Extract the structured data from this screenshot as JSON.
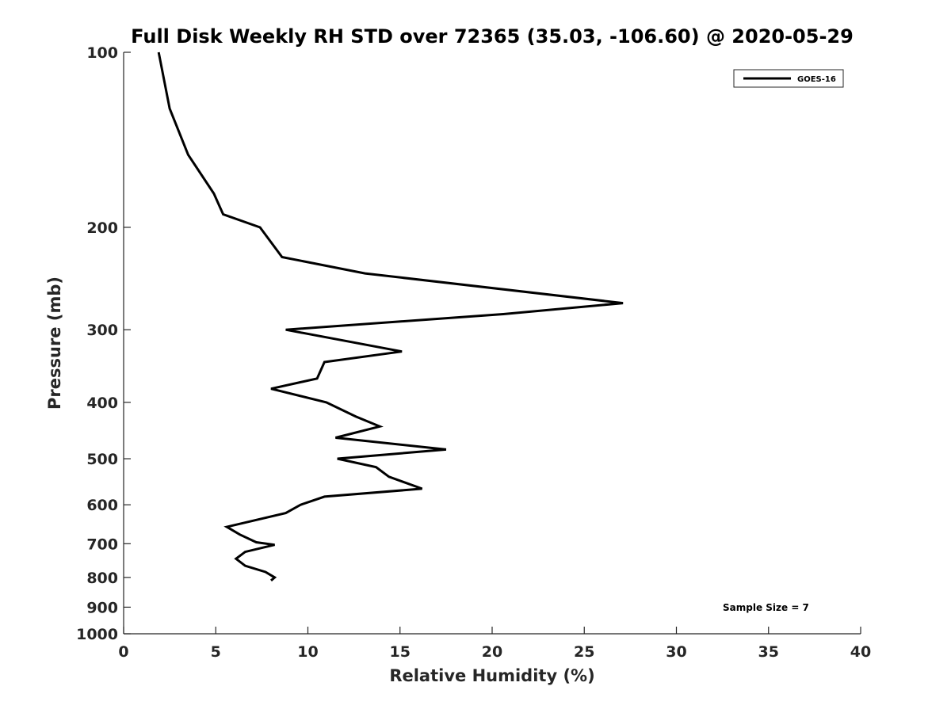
{
  "chart_data": {
    "type": "line",
    "title": "Full Disk Weekly RH STD over 72365 (35.03, -106.60) @ 2020-05-29",
    "xlabel": "Relative Humidity (%)",
    "ylabel": "Pressure (mb)",
    "xlim": [
      0,
      40
    ],
    "ylim": [
      1000,
      100
    ],
    "yscale": "log",
    "x_ticks": [
      "0",
      "5",
      "10",
      "15",
      "20",
      "25",
      "30",
      "35",
      "40"
    ],
    "y_ticks": [
      "100",
      "200",
      "300",
      "400",
      "500",
      "600",
      "700",
      "800",
      "900",
      "1000"
    ],
    "grid": false,
    "legend_position": "top-right",
    "annotation": "Sample Size = 7",
    "series": [
      {
        "name": "GOES-16",
        "color": "#000000",
        "points": [
          {
            "x": 1.9,
            "p": 100
          },
          {
            "x": 2.5,
            "p": 125
          },
          {
            "x": 3.5,
            "p": 150
          },
          {
            "x": 4.9,
            "p": 175
          },
          {
            "x": 5.4,
            "p": 190
          },
          {
            "x": 7.4,
            "p": 200
          },
          {
            "x": 8.6,
            "p": 225
          },
          {
            "x": 13.1,
            "p": 240
          },
          {
            "x": 27.1,
            "p": 270
          },
          {
            "x": 20.6,
            "p": 282
          },
          {
            "x": 8.8,
            "p": 300
          },
          {
            "x": 15.1,
            "p": 327
          },
          {
            "x": 10.9,
            "p": 341
          },
          {
            "x": 10.5,
            "p": 364
          },
          {
            "x": 8.0,
            "p": 379
          },
          {
            "x": 11.0,
            "p": 400
          },
          {
            "x": 12.6,
            "p": 423
          },
          {
            "x": 13.9,
            "p": 440
          },
          {
            "x": 11.5,
            "p": 460
          },
          {
            "x": 17.5,
            "p": 482
          },
          {
            "x": 11.6,
            "p": 500
          },
          {
            "x": 13.7,
            "p": 517
          },
          {
            "x": 14.4,
            "p": 537
          },
          {
            "x": 16.2,
            "p": 563
          },
          {
            "x": 10.9,
            "p": 581
          },
          {
            "x": 9.6,
            "p": 600
          },
          {
            "x": 8.8,
            "p": 620
          },
          {
            "x": 5.6,
            "p": 655
          },
          {
            "x": 6.3,
            "p": 675
          },
          {
            "x": 7.2,
            "p": 696
          },
          {
            "x": 8.2,
            "p": 703
          },
          {
            "x": 6.6,
            "p": 723
          },
          {
            "x": 6.1,
            "p": 743
          },
          {
            "x": 6.6,
            "p": 764
          },
          {
            "x": 7.7,
            "p": 783
          },
          {
            "x": 8.2,
            "p": 800
          },
          {
            "x": 8.0,
            "p": 810
          }
        ]
      }
    ]
  }
}
